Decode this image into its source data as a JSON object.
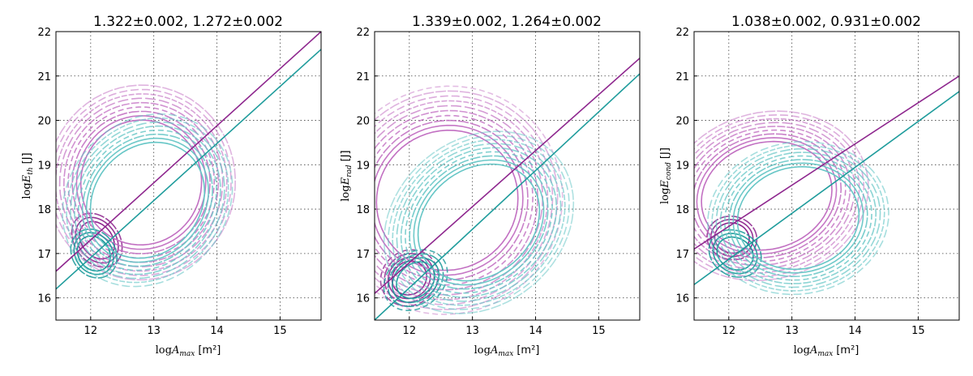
{
  "colors": {
    "purple": "#8e278e",
    "teal": "#1f9c9c",
    "purple_light": "#c270c2",
    "teal_light": "#66c6c6"
  },
  "chart_data": [
    {
      "type": "scatter",
      "title": "1.322±0.002, 1.272±0.002",
      "xlabel_prefix": "log",
      "xlabel_var": "A",
      "xlabel_sub": "max",
      "xlabel_unit": "[m²]",
      "ylabel_prefix": "log",
      "ylabel_var": "E",
      "ylabel_sub": "th",
      "ylabel_unit": "[J]",
      "xlim": [
        11.45,
        15.65
      ],
      "ylim": [
        15.5,
        22
      ],
      "xticks": [
        12,
        13,
        14,
        15
      ],
      "yticks": [
        16,
        17,
        18,
        19,
        20,
        21,
        22
      ],
      "grid": true,
      "series": [
        {
          "name": "purple fit",
          "color_key": "purple",
          "x": [
            11.45,
            15.65
          ],
          "y": [
            16.6,
            22.0
          ]
        },
        {
          "name": "teal fit",
          "color_key": "teal",
          "x": [
            11.45,
            15.65
          ],
          "y": [
            16.2,
            21.6
          ]
        }
      ],
      "contours": [
        {
          "color_key": "purple",
          "cx": 12.1,
          "cy": 17.3,
          "w": 0.25,
          "h": 0.5,
          "tilt": 1.3,
          "n": 3,
          "grow": 0.22
        },
        {
          "color_key": "purple_light",
          "cx": 12.8,
          "cy": 18.6,
          "w": 1.0,
          "h": 1.5,
          "tilt": 1.3,
          "n": 9,
          "grow": 0.07
        },
        {
          "color_key": "teal",
          "cx": 12.05,
          "cy": 17.0,
          "w": 0.25,
          "h": 0.45,
          "tilt": 1.3,
          "n": 3,
          "grow": 0.2
        },
        {
          "color_key": "teal_light",
          "cx": 12.9,
          "cy": 18.2,
          "w": 1.0,
          "h": 1.3,
          "tilt": 1.3,
          "n": 8,
          "grow": 0.07
        }
      ]
    },
    {
      "type": "scatter",
      "title": "1.339±0.002, 1.264±0.002",
      "xlabel_prefix": "log",
      "xlabel_var": "A",
      "xlabel_sub": "max",
      "xlabel_unit": "[m²]",
      "ylabel_prefix": "log",
      "ylabel_var": "E",
      "ylabel_sub": "rad",
      "ylabel_unit": "[J]",
      "xlim": [
        11.45,
        15.65
      ],
      "ylim": [
        15.5,
        22
      ],
      "xticks": [
        12,
        13,
        14,
        15
      ],
      "yticks": [
        16,
        17,
        18,
        19,
        20,
        21,
        22
      ],
      "grid": true,
      "series": [
        {
          "name": "purple fit",
          "color_key": "purple",
          "x": [
            11.45,
            15.65
          ],
          "y": [
            16.1,
            21.4
          ]
        },
        {
          "name": "teal fit",
          "color_key": "teal",
          "x": [
            11.45,
            15.65
          ],
          "y": [
            15.5,
            21.05
          ]
        }
      ],
      "contours": [
        {
          "color_key": "purple",
          "cx": 12.0,
          "cy": 16.45,
          "w": 0.3,
          "h": 0.4,
          "tilt": 1.2,
          "n": 4,
          "grow": 0.22
        },
        {
          "color_key": "purple_light",
          "cx": 12.6,
          "cy": 18.2,
          "w": 1.2,
          "h": 1.7,
          "tilt": 1.2,
          "n": 10,
          "grow": 0.07
        },
        {
          "color_key": "teal",
          "cx": 12.1,
          "cy": 16.4,
          "w": 0.35,
          "h": 0.4,
          "tilt": 1.2,
          "n": 4,
          "grow": 0.22
        },
        {
          "color_key": "teal_light",
          "cx": 13.1,
          "cy": 17.7,
          "w": 1.1,
          "h": 1.3,
          "tilt": 1.2,
          "n": 9,
          "grow": 0.07
        }
      ]
    },
    {
      "type": "scatter",
      "title": "1.038±0.002, 0.931±0.002",
      "xlabel_prefix": "log",
      "xlabel_var": "A",
      "xlabel_sub": "max",
      "xlabel_unit": "[m²]",
      "ylabel_prefix": "log",
      "ylabel_var": "E",
      "ylabel_sub": "cond",
      "ylabel_unit": "[J]",
      "xlim": [
        11.45,
        15.65
      ],
      "ylim": [
        15.5,
        22
      ],
      "xticks": [
        12,
        13,
        14,
        15
      ],
      "yticks": [
        16,
        17,
        18,
        19,
        20,
        21,
        22
      ],
      "grid": true,
      "series": [
        {
          "name": "purple fit",
          "color_key": "purple",
          "x": [
            11.45,
            15.65
          ],
          "y": [
            17.1,
            21.0
          ]
        },
        {
          "name": "teal fit",
          "color_key": "teal",
          "x": [
            11.45,
            15.65
          ],
          "y": [
            16.3,
            20.65
          ]
        }
      ],
      "contours": [
        {
          "color_key": "purple",
          "cx": 12.05,
          "cy": 17.35,
          "w": 0.3,
          "h": 0.4,
          "tilt": 0.9,
          "n": 3,
          "grow": 0.22
        },
        {
          "color_key": "purple_light",
          "cx": 12.6,
          "cy": 18.3,
          "w": 1.2,
          "h": 1.35,
          "tilt": 0.9,
          "n": 9,
          "grow": 0.07
        },
        {
          "color_key": "teal",
          "cx": 12.1,
          "cy": 17.0,
          "w": 0.3,
          "h": 0.45,
          "tilt": 0.9,
          "n": 3,
          "grow": 0.22
        },
        {
          "color_key": "teal_light",
          "cx": 13.1,
          "cy": 17.8,
          "w": 1.1,
          "h": 1.3,
          "tilt": 0.9,
          "n": 8,
          "grow": 0.07
        }
      ]
    }
  ]
}
